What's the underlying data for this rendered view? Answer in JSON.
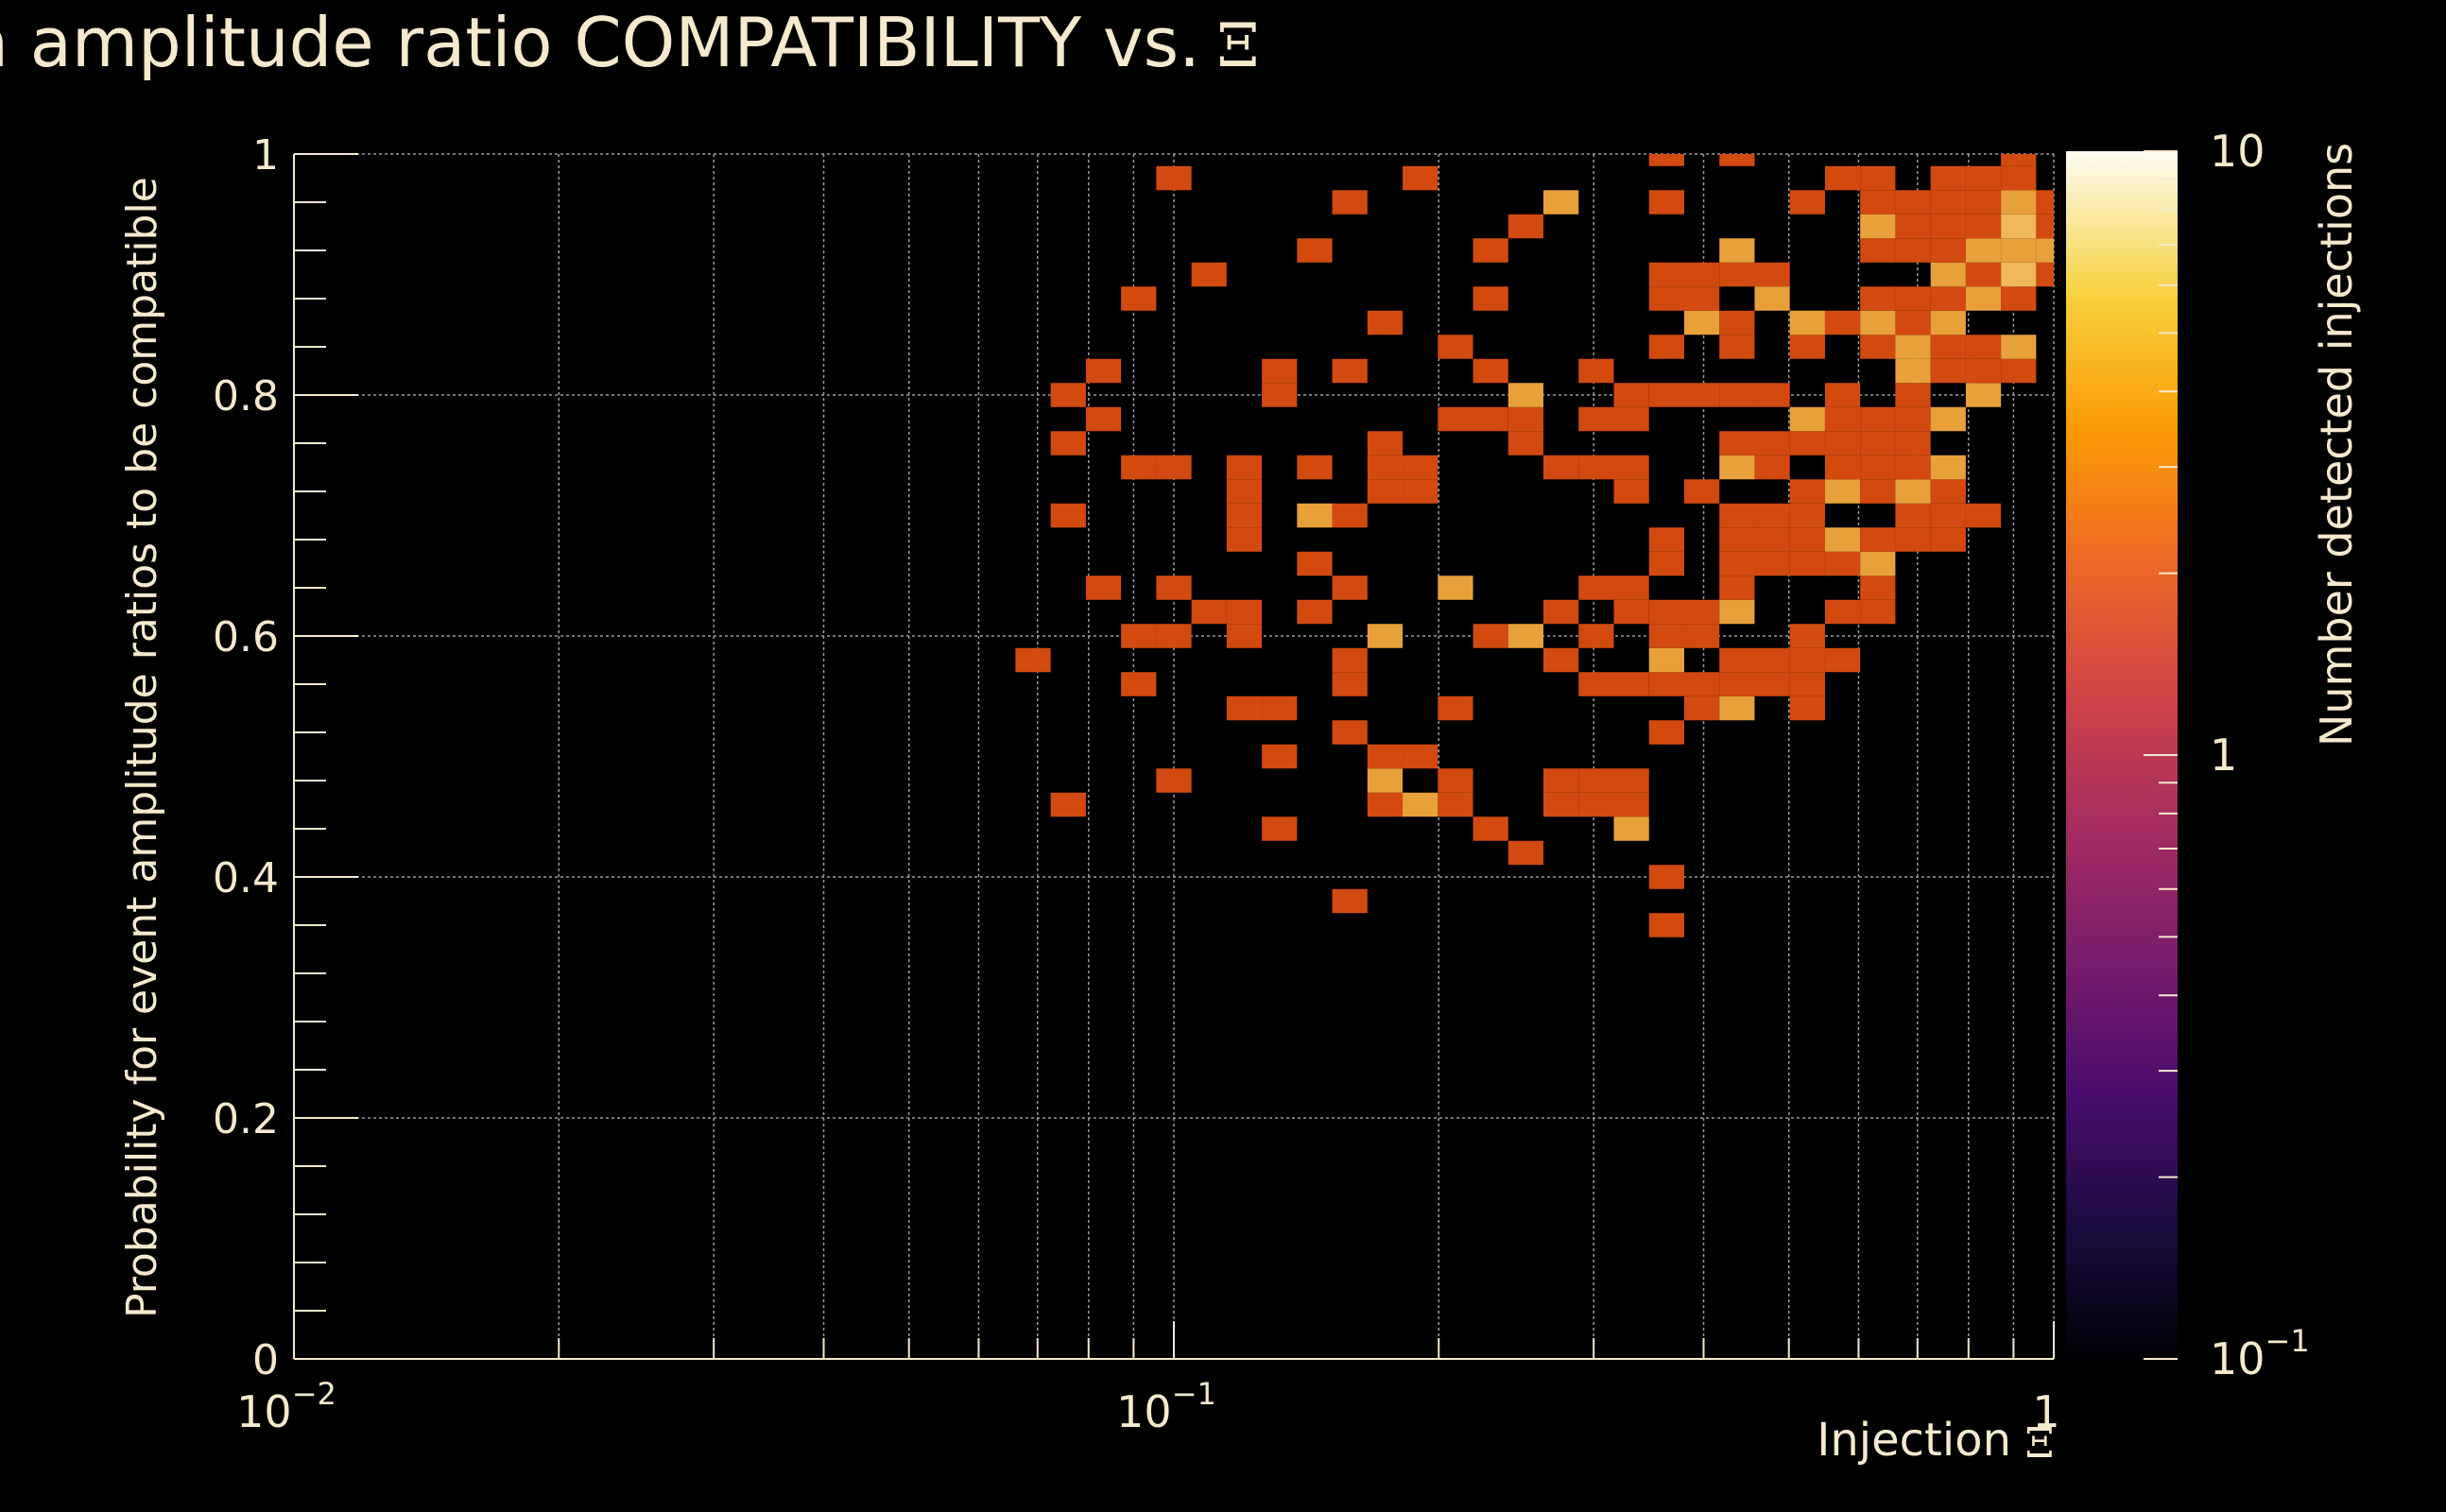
{
  "chart_data": {
    "type": "heatmap",
    "title": "Injection amplitude ratio COMPATIBILITY vs.",
    "title_symbol": "Ξ",
    "xlabel": "Injection",
    "xlabel_symbol": "Ξ",
    "ylabel": "Probability for event amplitude ratios to be compatible",
    "zlabel": "Number detected injections",
    "x_scale": "log",
    "xlim": [
      0.01,
      1
    ],
    "ylim": [
      0,
      1
    ],
    "z_scale": "log",
    "zlim": [
      0.1,
      10
    ],
    "grid": true,
    "x_tick_labels": [
      {
        "base": "10",
        "exp": "−2"
      },
      {
        "base": "10",
        "exp": "−1"
      },
      {
        "base": "1",
        "exp": ""
      }
    ],
    "y_tick_labels": [
      "0",
      "0.2",
      "0.4",
      "0.6",
      "0.8",
      "1"
    ],
    "z_tick_labels": [
      {
        "base": "10",
        "exp": "−1"
      },
      {
        "base": "1",
        "exp": ""
      },
      {
        "base": "10",
        "exp": ""
      }
    ],
    "colors": {
      "background": "#000000",
      "text": "#F5E9CE",
      "grid": "#9a9a9a",
      "cmap": [
        "#000004",
        "#1b0c41",
        "#4a0c6b",
        "#781c6d",
        "#a52c60",
        "#cf4446",
        "#ed6925",
        "#fb9b06",
        "#f7d13d",
        "#fcffa4"
      ]
    },
    "x_bin_edges_log10": [
      -2,
      -1.96,
      -1.92,
      -1.88,
      -1.84,
      -1.8,
      -1.76,
      -1.72,
      -1.68,
      -1.64,
      -1.6,
      -1.56,
      -1.52,
      -1.48,
      -1.44,
      -1.4,
      -1.36,
      -1.32,
      -1.28,
      -1.24,
      -1.2,
      -1.16,
      -1.12,
      -1.08,
      -1.04,
      -1,
      -0.96,
      -0.92,
      -0.88,
      -0.84,
      -0.8,
      -0.76,
      -0.72,
      -0.68,
      -0.64,
      -0.6,
      -0.56,
      -0.52,
      -0.48,
      -0.44,
      -0.4,
      -0.36,
      -0.32,
      -0.28,
      -0.24,
      -0.2,
      -0.16,
      -0.12,
      -0.08,
      -0.04,
      0
    ],
    "y_bin_width": 0.02,
    "cells": [
      [
        -1.16,
        0.58,
        1
      ],
      [
        -1.12,
        0.46,
        1
      ],
      [
        -1.12,
        0.7,
        1
      ],
      [
        -1.12,
        0.76,
        1
      ],
      [
        -1.12,
        0.8,
        1
      ],
      [
        -1.08,
        0.64,
        1
      ],
      [
        -1.08,
        0.78,
        1
      ],
      [
        -1.08,
        0.82,
        1
      ],
      [
        -1.04,
        0.56,
        1
      ],
      [
        -1.04,
        0.6,
        1
      ],
      [
        -1.04,
        0.74,
        1
      ],
      [
        -1.04,
        0.88,
        1
      ],
      [
        -1.0,
        0.48,
        1
      ],
      [
        -1.0,
        0.6,
        1
      ],
      [
        -1.0,
        0.64,
        1
      ],
      [
        -1.0,
        0.74,
        1
      ],
      [
        -1.0,
        0.98,
        1
      ],
      [
        -0.96,
        0.62,
        1
      ],
      [
        -0.96,
        0.9,
        1
      ],
      [
        -0.92,
        0.54,
        1
      ],
      [
        -0.92,
        0.62,
        1
      ],
      [
        -0.92,
        0.6,
        1
      ],
      [
        -0.92,
        0.68,
        1
      ],
      [
        -0.92,
        0.7,
        1
      ],
      [
        -0.92,
        0.72,
        1
      ],
      [
        -0.92,
        0.74,
        1
      ],
      [
        -0.88,
        0.44,
        1
      ],
      [
        -0.88,
        0.5,
        1
      ],
      [
        -0.88,
        0.54,
        1
      ],
      [
        -0.88,
        0.8,
        1
      ],
      [
        -0.88,
        0.82,
        1
      ],
      [
        -0.84,
        0.62,
        1
      ],
      [
        -0.84,
        0.66,
        1
      ],
      [
        -0.84,
        0.7,
        3
      ],
      [
        -0.84,
        0.74,
        1
      ],
      [
        -0.84,
        0.92,
        1
      ],
      [
        -0.8,
        0.38,
        1
      ],
      [
        -0.8,
        0.52,
        1
      ],
      [
        -0.8,
        0.56,
        1
      ],
      [
        -0.8,
        0.58,
        1
      ],
      [
        -0.8,
        0.64,
        1
      ],
      [
        -0.8,
        0.7,
        1
      ],
      [
        -0.8,
        0.82,
        1
      ],
      [
        -0.8,
        0.96,
        1
      ],
      [
        -0.76,
        0.46,
        1
      ],
      [
        -0.76,
        0.48,
        3
      ],
      [
        -0.76,
        0.5,
        1
      ],
      [
        -0.76,
        0.6,
        3
      ],
      [
        -0.76,
        0.72,
        1
      ],
      [
        -0.76,
        0.74,
        1
      ],
      [
        -0.76,
        0.76,
        1
      ],
      [
        -0.76,
        0.86,
        1
      ],
      [
        -0.72,
        0.46,
        3
      ],
      [
        -0.72,
        0.5,
        1
      ],
      [
        -0.72,
        0.72,
        1
      ],
      [
        -0.72,
        0.74,
        1
      ],
      [
        -0.72,
        0.98,
        1
      ],
      [
        -0.68,
        0.46,
        1
      ],
      [
        -0.68,
        0.48,
        1
      ],
      [
        -0.68,
        0.54,
        1
      ],
      [
        -0.68,
        0.64,
        3
      ],
      [
        -0.68,
        0.78,
        1
      ],
      [
        -0.68,
        0.84,
        1
      ],
      [
        -0.64,
        0.44,
        1
      ],
      [
        -0.64,
        0.6,
        1
      ],
      [
        -0.64,
        0.82,
        1
      ],
      [
        -0.64,
        0.78,
        1
      ],
      [
        -0.64,
        0.88,
        1
      ],
      [
        -0.64,
        0.92,
        1
      ],
      [
        -0.6,
        0.42,
        1
      ],
      [
        -0.6,
        0.6,
        3
      ],
      [
        -0.6,
        0.76,
        1
      ],
      [
        -0.6,
        0.78,
        1
      ],
      [
        -0.6,
        0.8,
        3
      ],
      [
        -0.6,
        0.94,
        1
      ],
      [
        -0.56,
        0.46,
        1
      ],
      [
        -0.56,
        0.48,
        1
      ],
      [
        -0.56,
        0.58,
        1
      ],
      [
        -0.56,
        0.62,
        1
      ],
      [
        -0.56,
        0.74,
        1
      ],
      [
        -0.56,
        0.96,
        3
      ],
      [
        -0.52,
        0.46,
        1
      ],
      [
        -0.52,
        0.48,
        1
      ],
      [
        -0.52,
        0.56,
        1
      ],
      [
        -0.52,
        0.6,
        1
      ],
      [
        -0.52,
        0.64,
        1
      ],
      [
        -0.52,
        0.74,
        1
      ],
      [
        -0.52,
        0.78,
        1
      ],
      [
        -0.52,
        0.82,
        1
      ],
      [
        -0.48,
        0.44,
        3
      ],
      [
        -0.48,
        0.46,
        1
      ],
      [
        -0.48,
        0.48,
        1
      ],
      [
        -0.48,
        0.56,
        1
      ],
      [
        -0.48,
        0.62,
        1
      ],
      [
        -0.48,
        0.64,
        1
      ],
      [
        -0.48,
        0.72,
        1
      ],
      [
        -0.48,
        0.74,
        1
      ],
      [
        -0.48,
        0.78,
        1
      ],
      [
        -0.48,
        0.8,
        1
      ],
      [
        -0.44,
        0.36,
        1
      ],
      [
        -0.44,
        0.4,
        1
      ],
      [
        -0.44,
        0.52,
        1
      ],
      [
        -0.44,
        0.56,
        1
      ],
      [
        -0.44,
        0.58,
        3
      ],
      [
        -0.44,
        0.6,
        1
      ],
      [
        -0.44,
        0.62,
        1
      ],
      [
        -0.44,
        0.66,
        1
      ],
      [
        -0.44,
        0.68,
        1
      ],
      [
        -0.44,
        0.8,
        1
      ],
      [
        -0.44,
        0.84,
        1
      ],
      [
        -0.44,
        0.88,
        1
      ],
      [
        -0.44,
        0.9,
        1
      ],
      [
        -0.44,
        0.96,
        1
      ],
      [
        -0.44,
        1.0,
        1
      ],
      [
        -0.4,
        0.54,
        1
      ],
      [
        -0.4,
        0.56,
        1
      ],
      [
        -0.4,
        0.6,
        1
      ],
      [
        -0.4,
        0.62,
        1
      ],
      [
        -0.4,
        0.72,
        1
      ],
      [
        -0.4,
        0.8,
        1
      ],
      [
        -0.4,
        0.86,
        3
      ],
      [
        -0.4,
        0.88,
        1
      ],
      [
        -0.4,
        0.9,
        1
      ],
      [
        -0.36,
        0.54,
        3
      ],
      [
        -0.36,
        0.56,
        1
      ],
      [
        -0.36,
        0.58,
        1
      ],
      [
        -0.36,
        0.62,
        3
      ],
      [
        -0.36,
        0.64,
        1
      ],
      [
        -0.36,
        0.66,
        1
      ],
      [
        -0.36,
        0.68,
        1
      ],
      [
        -0.36,
        0.7,
        1
      ],
      [
        -0.36,
        0.74,
        3
      ],
      [
        -0.36,
        0.76,
        1
      ],
      [
        -0.36,
        0.8,
        1
      ],
      [
        -0.36,
        0.84,
        1
      ],
      [
        -0.36,
        0.86,
        1
      ],
      [
        -0.36,
        0.9,
        1
      ],
      [
        -0.36,
        0.92,
        3
      ],
      [
        -0.36,
        1.0,
        1
      ],
      [
        -0.32,
        0.56,
        1
      ],
      [
        -0.32,
        0.58,
        1
      ],
      [
        -0.32,
        0.66,
        1
      ],
      [
        -0.32,
        0.68,
        1
      ],
      [
        -0.32,
        0.7,
        1
      ],
      [
        -0.32,
        0.74,
        1
      ],
      [
        -0.32,
        0.76,
        1
      ],
      [
        -0.32,
        0.8,
        1
      ],
      [
        -0.32,
        0.88,
        3
      ],
      [
        -0.32,
        0.9,
        1
      ],
      [
        -0.28,
        0.54,
        1
      ],
      [
        -0.28,
        0.56,
        1
      ],
      [
        -0.28,
        0.58,
        1
      ],
      [
        -0.28,
        0.6,
        1
      ],
      [
        -0.28,
        0.66,
        1
      ],
      [
        -0.28,
        0.68,
        1
      ],
      [
        -0.28,
        0.7,
        1
      ],
      [
        -0.28,
        0.72,
        1
      ],
      [
        -0.28,
        0.76,
        1
      ],
      [
        -0.28,
        0.78,
        3
      ],
      [
        -0.28,
        0.84,
        1
      ],
      [
        -0.28,
        0.86,
        3
      ],
      [
        -0.28,
        0.96,
        1
      ],
      [
        -0.24,
        0.58,
        1
      ],
      [
        -0.24,
        0.62,
        1
      ],
      [
        -0.24,
        0.66,
        1
      ],
      [
        -0.24,
        0.68,
        3
      ],
      [
        -0.24,
        0.72,
        3
      ],
      [
        -0.24,
        0.74,
        1
      ],
      [
        -0.24,
        0.76,
        1
      ],
      [
        -0.24,
        0.78,
        1
      ],
      [
        -0.24,
        0.8,
        1
      ],
      [
        -0.24,
        0.86,
        1
      ],
      [
        -0.24,
        0.98,
        1
      ],
      [
        -0.2,
        0.62,
        1
      ],
      [
        -0.2,
        0.64,
        1
      ],
      [
        -0.2,
        0.66,
        3
      ],
      [
        -0.2,
        0.68,
        1
      ],
      [
        -0.2,
        0.72,
        1
      ],
      [
        -0.2,
        0.74,
        1
      ],
      [
        -0.2,
        0.76,
        1
      ],
      [
        -0.2,
        0.78,
        1
      ],
      [
        -0.2,
        0.84,
        1
      ],
      [
        -0.2,
        0.86,
        3
      ],
      [
        -0.2,
        0.88,
        1
      ],
      [
        -0.2,
        0.92,
        1
      ],
      [
        -0.2,
        0.94,
        3
      ],
      [
        -0.2,
        0.96,
        1
      ],
      [
        -0.2,
        0.98,
        1
      ],
      [
        -0.16,
        0.68,
        1
      ],
      [
        -0.16,
        0.7,
        1
      ],
      [
        -0.16,
        0.72,
        3
      ],
      [
        -0.16,
        0.74,
        1
      ],
      [
        -0.16,
        0.76,
        1
      ],
      [
        -0.16,
        0.78,
        1
      ],
      [
        -0.16,
        0.8,
        1
      ],
      [
        -0.16,
        0.82,
        3
      ],
      [
        -0.16,
        0.84,
        3
      ],
      [
        -0.16,
        0.86,
        1
      ],
      [
        -0.16,
        0.88,
        1
      ],
      [
        -0.16,
        0.92,
        1
      ],
      [
        -0.16,
        0.94,
        1
      ],
      [
        -0.16,
        0.96,
        1
      ],
      [
        -0.12,
        0.68,
        1
      ],
      [
        -0.12,
        0.7,
        1
      ],
      [
        -0.12,
        0.72,
        1
      ],
      [
        -0.12,
        0.74,
        3
      ],
      [
        -0.12,
        0.78,
        3
      ],
      [
        -0.12,
        0.82,
        1
      ],
      [
        -0.12,
        0.84,
        1
      ],
      [
        -0.12,
        0.86,
        3
      ],
      [
        -0.12,
        0.88,
        1
      ],
      [
        -0.12,
        0.9,
        3
      ],
      [
        -0.12,
        0.92,
        1
      ],
      [
        -0.12,
        0.94,
        1
      ],
      [
        -0.12,
        0.96,
        1
      ],
      [
        -0.12,
        0.98,
        1
      ],
      [
        -0.08,
        0.7,
        1
      ],
      [
        -0.08,
        0.8,
        3
      ],
      [
        -0.08,
        0.82,
        1
      ],
      [
        -0.08,
        0.84,
        1
      ],
      [
        -0.08,
        0.88,
        3
      ],
      [
        -0.08,
        0.9,
        1
      ],
      [
        -0.08,
        0.92,
        3
      ],
      [
        -0.08,
        0.94,
        1
      ],
      [
        -0.08,
        0.96,
        1
      ],
      [
        -0.08,
        0.98,
        1
      ],
      [
        -0.04,
        0.82,
        1
      ],
      [
        -0.04,
        0.84,
        3
      ],
      [
        -0.04,
        0.88,
        1
      ],
      [
        -0.04,
        0.9,
        5
      ],
      [
        -0.04,
        0.92,
        3
      ],
      [
        -0.04,
        0.94,
        5
      ],
      [
        -0.04,
        0.96,
        3
      ],
      [
        -0.04,
        0.98,
        1
      ],
      [
        -0.04,
        1.0,
        1
      ],
      [
        0.0,
        0.9,
        1
      ],
      [
        0.0,
        0.92,
        3
      ],
      [
        0.0,
        0.94,
        1
      ],
      [
        0.0,
        0.96,
        1
      ]
    ]
  }
}
